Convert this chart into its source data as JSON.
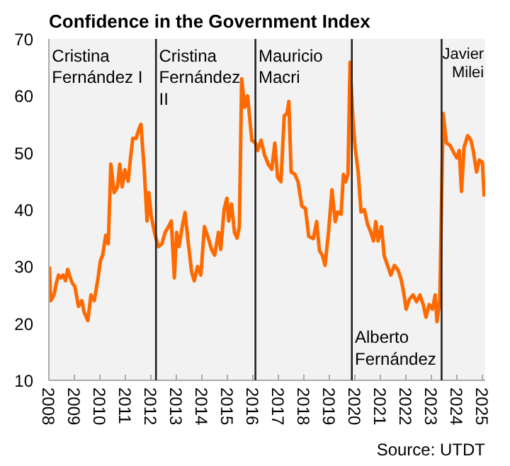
{
  "chart_data": {
    "type": "line",
    "title": "Confidence in the Government Index",
    "x": [
      2008.02,
      2008.07,
      2008.2,
      2008.29,
      2008.38,
      2008.47,
      2008.56,
      2008.65,
      2008.74,
      2008.84,
      2008.93,
      2009.02,
      2009.16,
      2009.29,
      2009.38,
      2009.53,
      2009.65,
      2009.78,
      2009.93,
      2010.02,
      2010.11,
      2010.23,
      2010.33,
      2010.43,
      2010.56,
      2010.69,
      2010.78,
      2010.87,
      2010.98,
      2011.11,
      2011.2,
      2011.29,
      2011.42,
      2011.52,
      2011.61,
      2011.74,
      2011.85,
      2011.92,
      2012.01,
      2012.14,
      2012.29,
      2012.43,
      2012.56,
      2012.69,
      2012.8,
      2012.92,
      2013.01,
      2013.1,
      2013.23,
      2013.34,
      2013.47,
      2013.6,
      2013.7,
      2013.83,
      2013.96,
      2014.1,
      2014.25,
      2014.38,
      2014.5,
      2014.65,
      2014.74,
      2014.87,
      2014.98,
      2015.05,
      2015.16,
      2015.28,
      2015.38,
      2015.47,
      2015.56,
      2015.68,
      2015.79,
      2015.96,
      2016.1,
      2016.19,
      2016.32,
      2016.46,
      2016.61,
      2016.74,
      2016.86,
      2016.97,
      2017.1,
      2017.23,
      2017.34,
      2017.41,
      2017.5,
      2017.65,
      2017.77,
      2017.92,
      2018.06,
      2018.19,
      2018.37,
      2018.5,
      2018.61,
      2018.73,
      2018.83,
      2018.97,
      2019.1,
      2019.23,
      2019.33,
      2019.46,
      2019.55,
      2019.64,
      2019.73,
      2019.81,
      2019.92,
      2020.01,
      2020.13,
      2020.24,
      2020.37,
      2020.5,
      2020.61,
      2020.73,
      2020.82,
      2020.91,
      2021.04,
      2021.15,
      2021.28,
      2021.41,
      2021.55,
      2021.7,
      2021.82,
      2021.91,
      2022.01,
      2022.13,
      2022.28,
      2022.42,
      2022.55,
      2022.68,
      2022.79,
      2022.91,
      2023.04,
      2023.15,
      2023.22,
      2023.33,
      2023.46,
      2023.59,
      2023.73,
      2023.88,
      2024.0,
      2024.09,
      2024.18,
      2024.28,
      2024.42,
      2024.55,
      2024.64,
      2024.77,
      2024.88,
      2025.0,
      2025.07
    ],
    "series": [
      {
        "color": "#ff6a00",
        "values": [
          30,
          24,
          25,
          27,
          28.5,
          28,
          28.5,
          27.5,
          29.5,
          28,
          27,
          26.5,
          23,
          24,
          22,
          20.5,
          25,
          24,
          28,
          31,
          32,
          35.5,
          34,
          48,
          43,
          44,
          48,
          44,
          47,
          45,
          49,
          52.5,
          52.5,
          54,
          55,
          47,
          38,
          43,
          39,
          36,
          33.5,
          34,
          36,
          37,
          38,
          28,
          36,
          33.5,
          37,
          39.5,
          34,
          29,
          27.5,
          30,
          28.5,
          37,
          35,
          33,
          32,
          36,
          33,
          40,
          42,
          38,
          41,
          36,
          35,
          37,
          63,
          58,
          60,
          52.2,
          51.7,
          50.4,
          52.2,
          49.6,
          47.9,
          47.1,
          51.7,
          45.7,
          44.9,
          56.5,
          56.9,
          59,
          46.6,
          46.2,
          44.9,
          40.6,
          40.2,
          35.3,
          34.9,
          37.9,
          32.8,
          31.9,
          30.2,
          36.2,
          43.5,
          37.9,
          39.6,
          39.2,
          46.2,
          44.9,
          46.2,
          65.9,
          56.1,
          50.9,
          46.6,
          39.6,
          40,
          37.4,
          36.2,
          34.5,
          37.9,
          34.5,
          37,
          31.9,
          30.2,
          28.5,
          30.2,
          29.3,
          27.6,
          25.5,
          22.5,
          24.2,
          25,
          23.8,
          25,
          23.3,
          21.1,
          23.3,
          22.5,
          25,
          20.3,
          24.2,
          56.9,
          51.7,
          51.3,
          50,
          49.1,
          50.4,
          43.2,
          50.9,
          53,
          52.2,
          50.4,
          46.6,
          48.7,
          48.3,
          42.3
        ]
      }
    ],
    "xlim": [
      2008,
      2025.11
    ],
    "xticks": [
      2008,
      2009,
      2010,
      2011,
      2012,
      2013,
      2014,
      2015,
      2016,
      2017,
      2018,
      2019,
      2020,
      2021,
      2022,
      2023,
      2024,
      2025
    ],
    "ylim": [
      10,
      70
    ],
    "yticks": [
      10,
      20,
      30,
      40,
      50,
      60,
      70
    ],
    "bands": [
      {
        "axis": "x",
        "from": 2008,
        "to": 2012.2,
        "label": "Cristina\nFernández I",
        "color": "#f2f2f2"
      },
      {
        "axis": "x",
        "from": 2012.2,
        "to": 2016.1,
        "label": "Cristina\nFernández\nII",
        "color": "#f2f2f2"
      },
      {
        "axis": "x",
        "from": 2016.1,
        "to": 2019.88,
        "label": "Mauricio\nMacri",
        "color": "#f2f2f2"
      },
      {
        "axis": "x",
        "from": 2019.88,
        "to": 2023.4,
        "label": "Alberto\nFernández",
        "color": "#f2f2f2"
      },
      {
        "axis": "x",
        "from": 2023.4,
        "to": 2025.11,
        "label": "Javier\nMilei",
        "color": "#f2f2f2"
      }
    ],
    "ref_lines": [
      {
        "axis": "x",
        "value": 2012.2,
        "color": "#222222"
      },
      {
        "axis": "x",
        "value": 2016.1,
        "color": "#222222"
      },
      {
        "axis": "x",
        "value": 2019.88,
        "color": "#222222"
      },
      {
        "axis": "x",
        "value": 2023.4,
        "color": "#222222"
      }
    ],
    "annotations": [
      "Source: UTDT"
    ]
  }
}
